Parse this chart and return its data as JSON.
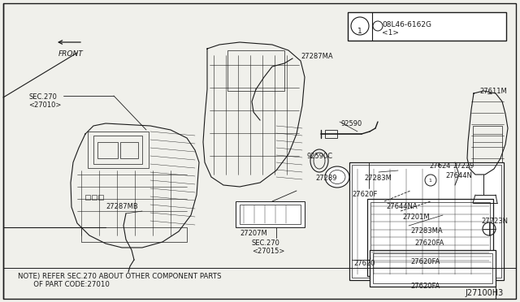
{
  "background_color": "#f5f5f0",
  "border_color": "#1a1a1a",
  "diagram_id": "J27100H3",
  "note_text": "NOTE) REFER SEC.270 ABOUT OTHER COMPONENT PARTS\n       OF PART CODE:27010",
  "part_number_box": {
    "text1": "08L46-6162G",
    "text2": "<1>",
    "circle": "1"
  },
  "front_label": "FRONT"
}
